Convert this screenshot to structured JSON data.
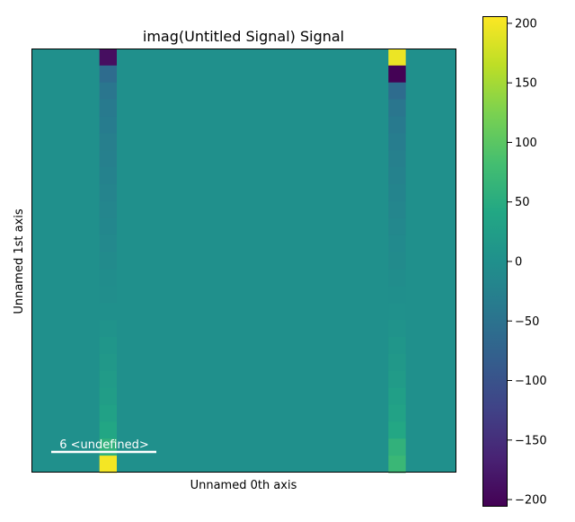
{
  "chart_data": {
    "type": "heatmap",
    "title": "imag(Untitled Signal) Signal",
    "xlabel": "Unnamed 0th axis",
    "ylabel": "Unnamed 1st axis",
    "colormap": "viridis",
    "clim": [
      -206,
      206
    ],
    "colorbar_ticks": [
      200,
      150,
      100,
      50,
      0,
      -50,
      -100,
      -150,
      -200
    ],
    "colorbar_tick_labels": [
      "200",
      "150",
      "100",
      "50",
      "0",
      "−50",
      "−100",
      "−150",
      "−200"
    ],
    "grid": false,
    "n_columns": 25,
    "n_rows": 25,
    "background_value": 0,
    "columns": [
      {
        "column_index": 4,
        "values": [
          -190,
          -60,
          -45,
          -38,
          -34,
          -30,
          -27,
          -24,
          -21,
          -18,
          -15,
          -12,
          -9,
          -6,
          -3,
          0,
          5,
          10,
          14,
          19,
          24,
          30,
          40,
          60,
          200
        ]
      },
      {
        "column_index": 21,
        "values": [
          195,
          -205,
          -60,
          -45,
          -37,
          -32,
          -28,
          -24,
          -20,
          -17,
          -14,
          -11,
          -8,
          -5,
          -2,
          2,
          6,
          10,
          15,
          20,
          26,
          33,
          42,
          60,
          70
        ]
      }
    ],
    "scalebar": {
      "text": "6 <undefined>"
    }
  }
}
